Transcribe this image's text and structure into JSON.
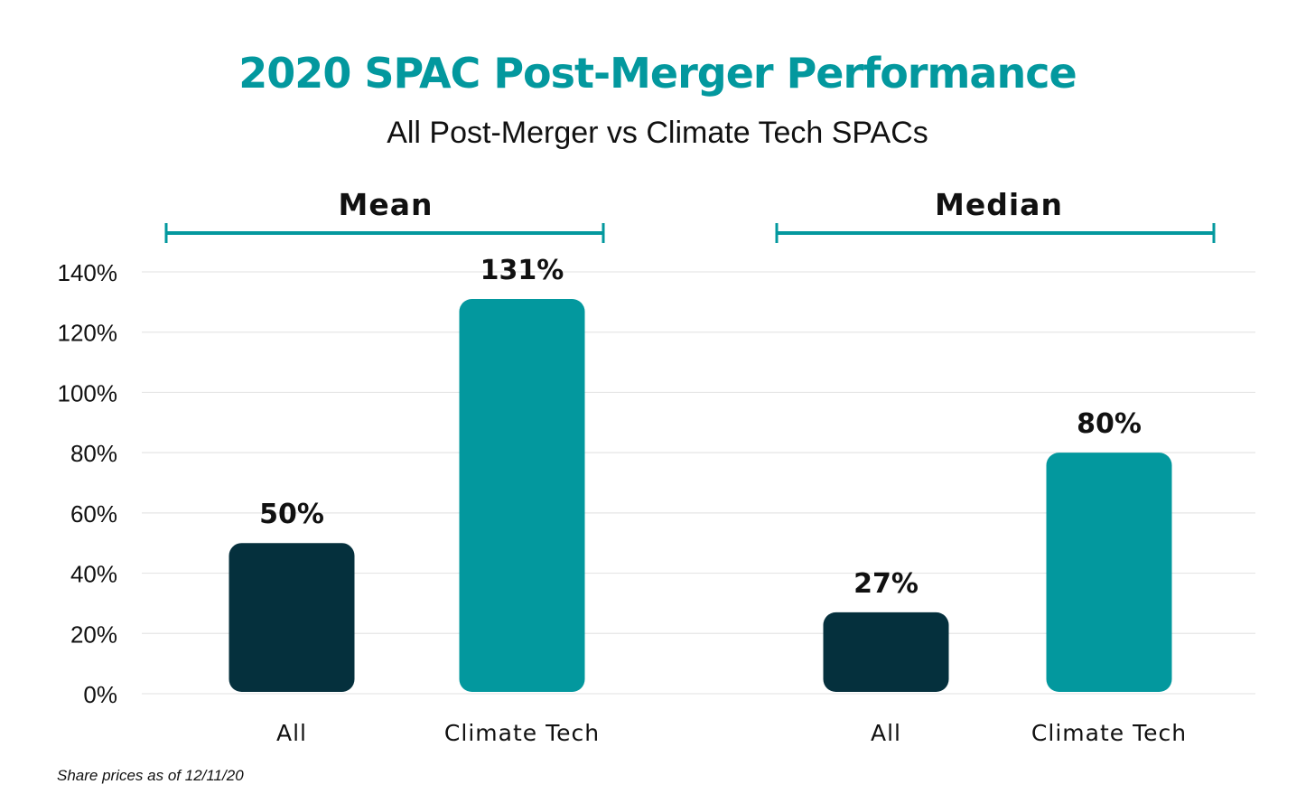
{
  "chart_data": {
    "type": "bar",
    "title": "2020 SPAC Post-Merger Performance",
    "subtitle": "All Post-Merger vs Climate Tech SPACs",
    "ylim": [
      0,
      140
    ],
    "yticks": [
      "0%",
      "20%",
      "40%",
      "60%",
      "80%",
      "100%",
      "120%",
      "140%"
    ],
    "ytick_values": [
      0,
      20,
      40,
      60,
      80,
      100,
      120,
      140
    ],
    "grid": true,
    "groups": [
      {
        "name": "Mean",
        "bars": [
          {
            "category": "All",
            "value": 50,
            "label": "50%",
            "color": "#05303d"
          },
          {
            "category": "Climate Tech",
            "value": 131,
            "label": "131%",
            "color": "#03989e"
          }
        ]
      },
      {
        "name": "Median",
        "bars": [
          {
            "category": "All",
            "value": 27,
            "label": "27%",
            "color": "#05303d"
          },
          {
            "category": "Climate Tech",
            "value": 80,
            "label": "80%",
            "color": "#03989e"
          }
        ]
      }
    ]
  },
  "colors": {
    "accent": "#03989e",
    "dark": "#05303d",
    "text": "#111111",
    "grid": "#e6e6e6"
  },
  "footnote": "Share prices as of 12/11/20"
}
